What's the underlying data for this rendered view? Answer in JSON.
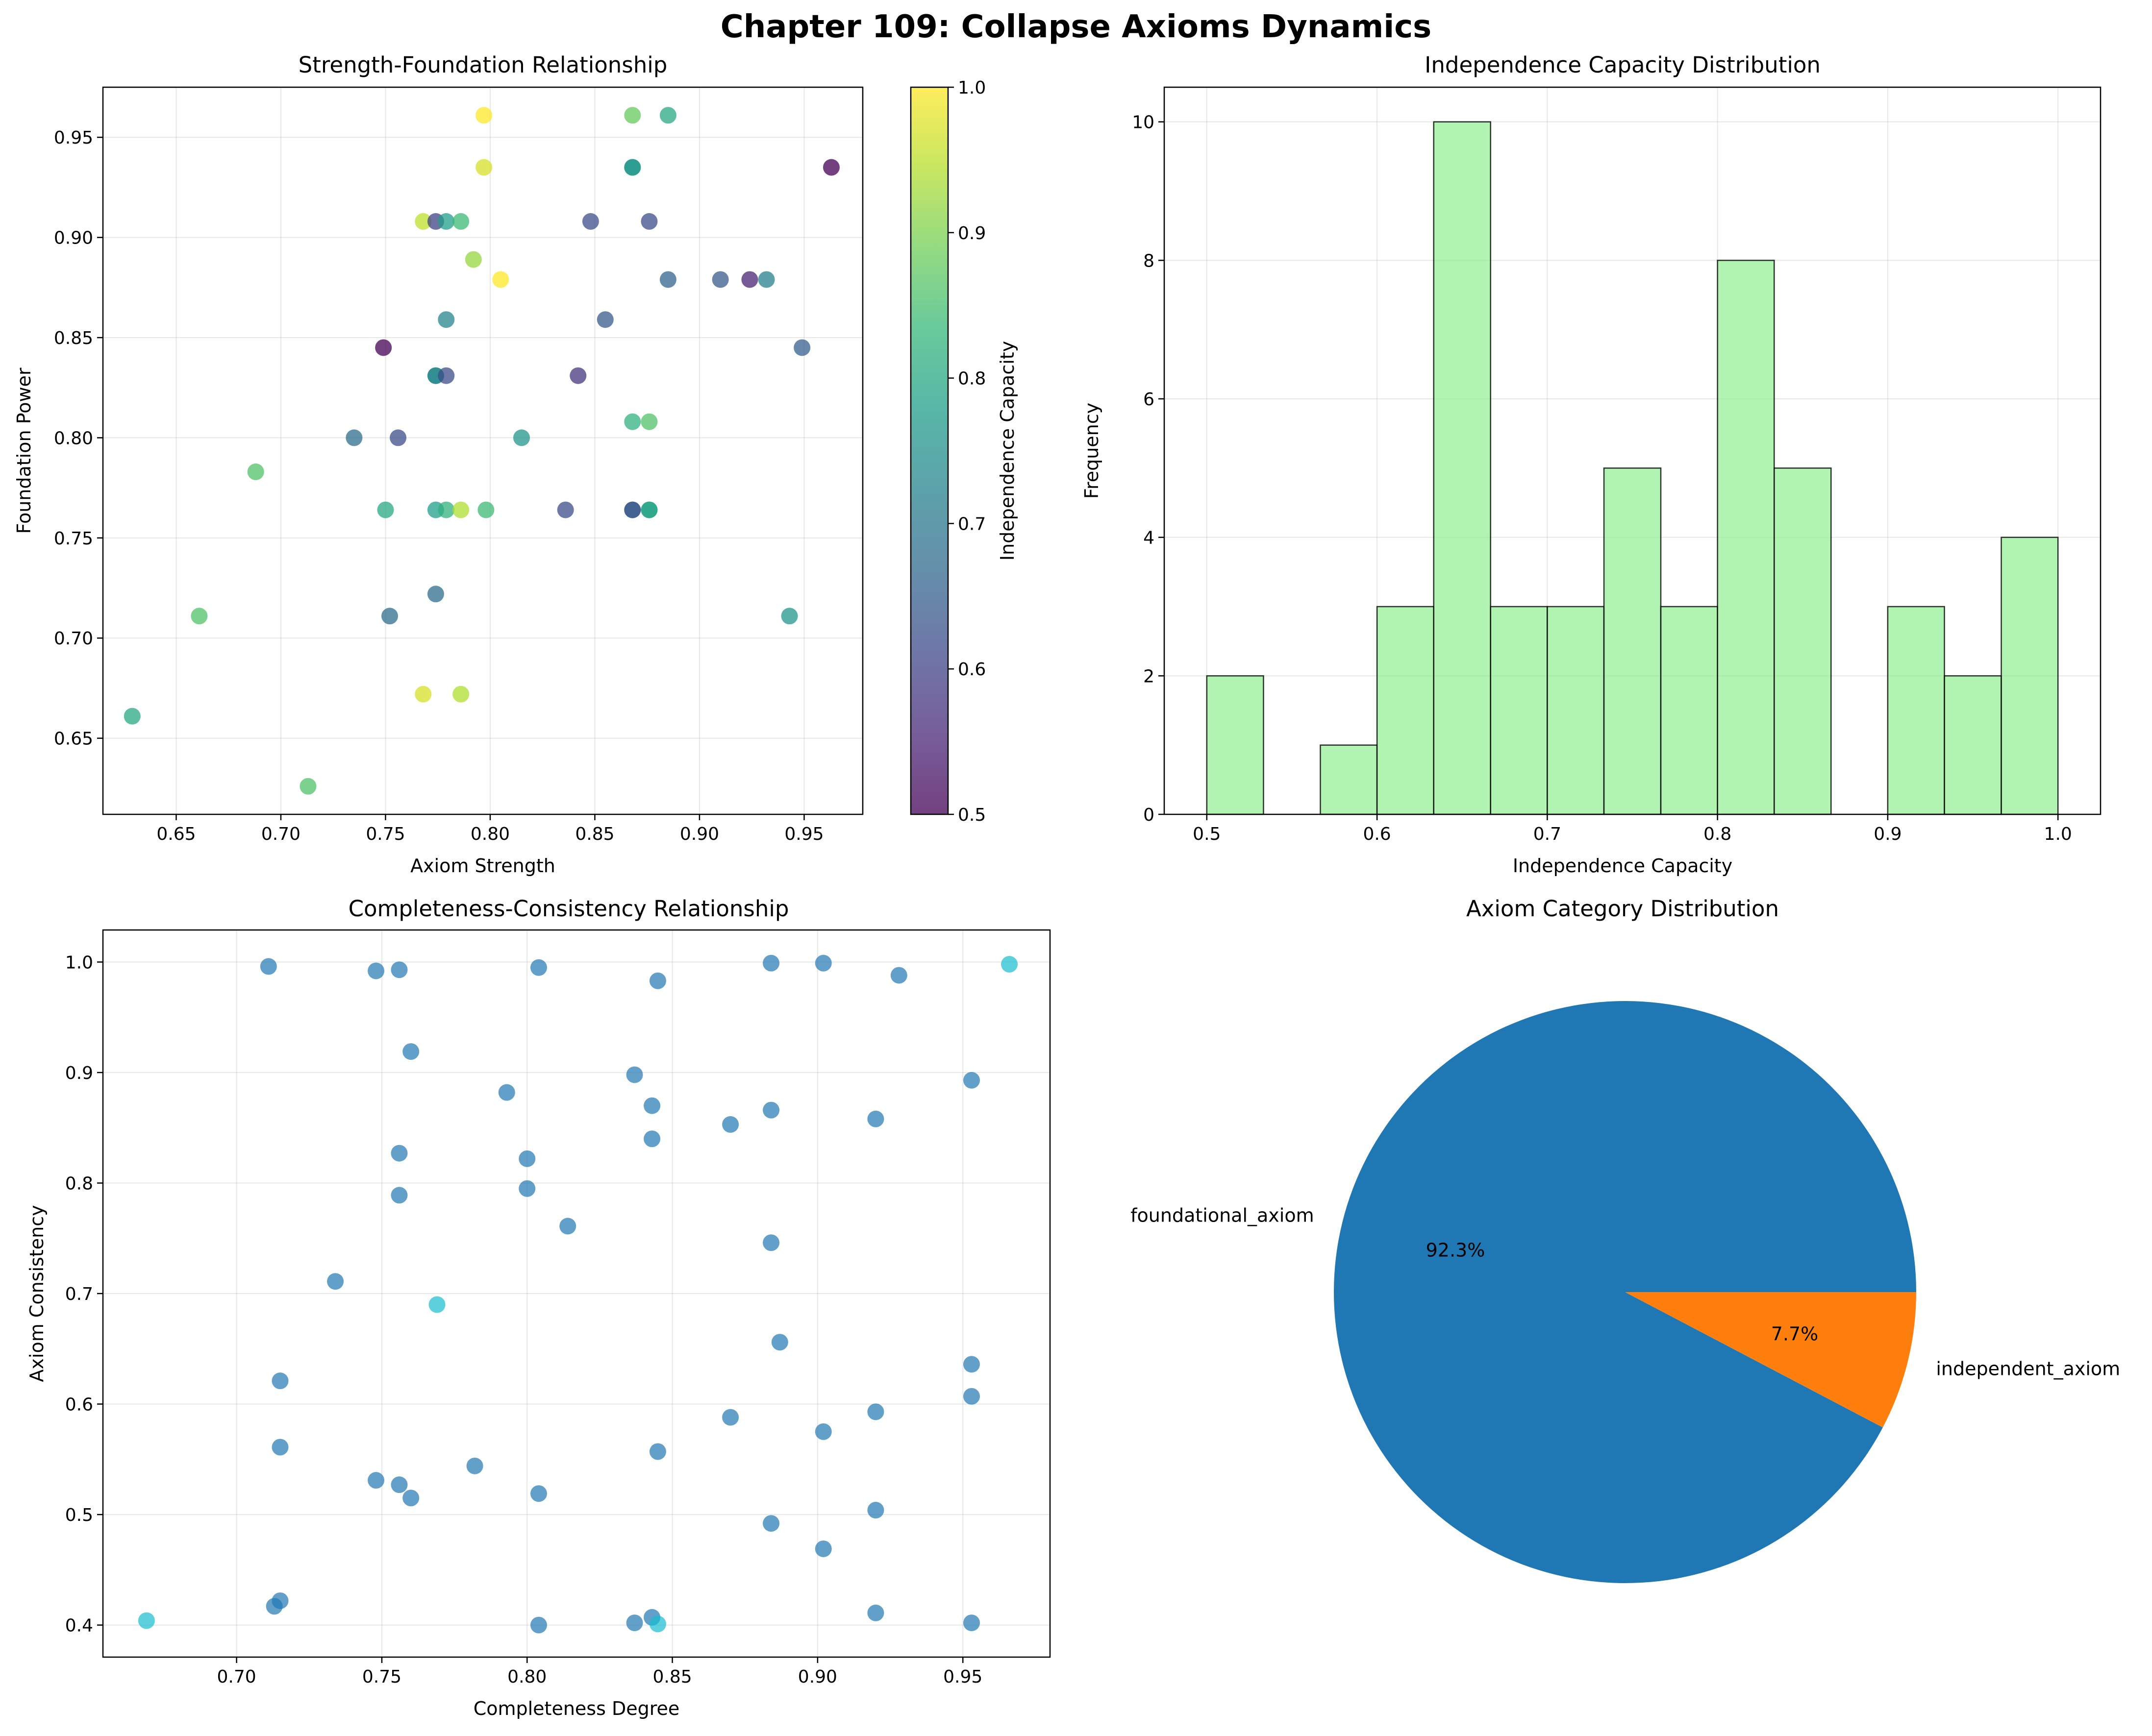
{
  "figure": {
    "title": "Chapter 109: Collapse Axioms Dynamics"
  },
  "colors": {
    "viridis": [
      "#440154",
      "#482878",
      "#3e4989",
      "#31688e",
      "#26828e",
      "#1f9e89",
      "#35b779",
      "#6ece58",
      "#b5de2b",
      "#fde725"
    ],
    "hist_fill": "#90ee90",
    "hist_edge": "#000000",
    "scatter_main": "#1f77b4",
    "scatter_alt": "#17becf",
    "pie": [
      "#1f77b4",
      "#ff7f0e"
    ]
  },
  "chart_data": [
    {
      "type": "scatter",
      "title": "Strength-Foundation Relationship",
      "xlabel": "Axiom Strength",
      "ylabel": "Foundation Power",
      "xlim": [
        0.615,
        0.978
      ],
      "ylim": [
        0.612,
        0.975
      ],
      "xticks": [
        "0.65",
        "0.70",
        "0.75",
        "0.80",
        "0.85",
        "0.90",
        "0.95"
      ],
      "yticks": [
        "0.65",
        "0.70",
        "0.75",
        "0.80",
        "0.85",
        "0.90",
        "0.95"
      ],
      "grid": true,
      "colorbar": {
        "label": "Independence Capacity",
        "range": [
          0.5,
          1.0
        ],
        "ticks": [
          "0.5",
          "0.6",
          "0.7",
          "0.8",
          "0.9",
          "1.0"
        ]
      },
      "points": [
        {
          "x": 0.797,
          "y": 0.961,
          "c": 1.0
        },
        {
          "x": 0.868,
          "y": 0.961,
          "c": 0.88
        },
        {
          "x": 0.885,
          "y": 0.961,
          "c": 0.8
        },
        {
          "x": 0.797,
          "y": 0.935,
          "c": 0.97
        },
        {
          "x": 0.868,
          "y": 0.935,
          "c": 0.78
        },
        {
          "x": 0.868,
          "y": 0.935,
          "c": 0.76
        },
        {
          "x": 0.963,
          "y": 0.935,
          "c": 0.5
        },
        {
          "x": 0.768,
          "y": 0.908,
          "c": 0.95
        },
        {
          "x": 0.774,
          "y": 0.908,
          "c": 0.6
        },
        {
          "x": 0.779,
          "y": 0.908,
          "c": 0.78
        },
        {
          "x": 0.786,
          "y": 0.908,
          "c": 0.84
        },
        {
          "x": 0.848,
          "y": 0.908,
          "c": 0.62
        },
        {
          "x": 0.876,
          "y": 0.908,
          "c": 0.62
        },
        {
          "x": 0.792,
          "y": 0.889,
          "c": 0.92
        },
        {
          "x": 0.805,
          "y": 0.879,
          "c": 1.0
        },
        {
          "x": 0.885,
          "y": 0.879,
          "c": 0.66
        },
        {
          "x": 0.91,
          "y": 0.879,
          "c": 0.64
        },
        {
          "x": 0.924,
          "y": 0.879,
          "c": 0.55
        },
        {
          "x": 0.932,
          "y": 0.879,
          "c": 0.72
        },
        {
          "x": 0.749,
          "y": 0.845,
          "c": 0.5
        },
        {
          "x": 0.949,
          "y": 0.845,
          "c": 0.65
        },
        {
          "x": 0.779,
          "y": 0.859,
          "c": 0.73
        },
        {
          "x": 0.855,
          "y": 0.859,
          "c": 0.64
        },
        {
          "x": 0.774,
          "y": 0.831,
          "c": 0.76
        },
        {
          "x": 0.774,
          "y": 0.831,
          "c": 0.73
        },
        {
          "x": 0.779,
          "y": 0.831,
          "c": 0.62
        },
        {
          "x": 0.842,
          "y": 0.831,
          "c": 0.58
        },
        {
          "x": 0.735,
          "y": 0.8,
          "c": 0.68
        },
        {
          "x": 0.756,
          "y": 0.8,
          "c": 0.62
        },
        {
          "x": 0.815,
          "y": 0.8,
          "c": 0.76
        },
        {
          "x": 0.868,
          "y": 0.808,
          "c": 0.82
        },
        {
          "x": 0.876,
          "y": 0.808,
          "c": 0.86
        },
        {
          "x": 0.688,
          "y": 0.783,
          "c": 0.86
        },
        {
          "x": 0.75,
          "y": 0.764,
          "c": 0.8
        },
        {
          "x": 0.774,
          "y": 0.764,
          "c": 0.78
        },
        {
          "x": 0.779,
          "y": 0.764,
          "c": 0.82
        },
        {
          "x": 0.786,
          "y": 0.764,
          "c": 0.94
        },
        {
          "x": 0.798,
          "y": 0.764,
          "c": 0.84
        },
        {
          "x": 0.836,
          "y": 0.764,
          "c": 0.62
        },
        {
          "x": 0.868,
          "y": 0.764,
          "c": 0.6
        },
        {
          "x": 0.868,
          "y": 0.764,
          "c": 0.65
        },
        {
          "x": 0.876,
          "y": 0.764,
          "c": 0.82
        },
        {
          "x": 0.876,
          "y": 0.764,
          "c": 0.78
        },
        {
          "x": 0.774,
          "y": 0.722,
          "c": 0.68
        },
        {
          "x": 0.661,
          "y": 0.711,
          "c": 0.86
        },
        {
          "x": 0.752,
          "y": 0.711,
          "c": 0.68
        },
        {
          "x": 0.943,
          "y": 0.711,
          "c": 0.76
        },
        {
          "x": 0.768,
          "y": 0.672,
          "c": 0.97
        },
        {
          "x": 0.786,
          "y": 0.672,
          "c": 0.94
        },
        {
          "x": 0.629,
          "y": 0.661,
          "c": 0.8
        },
        {
          "x": 0.713,
          "y": 0.626,
          "c": 0.86
        }
      ]
    },
    {
      "type": "bar",
      "title": "Independence Capacity Distribution",
      "xlabel": "Independence Capacity",
      "ylabel": "Frequency",
      "xlim": [
        0.475,
        1.025
      ],
      "ylim": [
        0,
        10.5
      ],
      "xticks": [
        "0.5",
        "0.6",
        "0.7",
        "0.8",
        "0.9",
        "1.0"
      ],
      "yticks": [
        "0",
        "2",
        "4",
        "6",
        "8",
        "10"
      ],
      "grid": true,
      "bin_edges": [
        0.5,
        0.5333,
        0.5667,
        0.6,
        0.6333,
        0.6667,
        0.7,
        0.7333,
        0.7667,
        0.8,
        0.8333,
        0.8667,
        0.9,
        0.9333,
        0.9667,
        1.0
      ],
      "counts": [
        2,
        0,
        1,
        3,
        10,
        3,
        3,
        5,
        3,
        8,
        5,
        0,
        3,
        2,
        4
      ]
    },
    {
      "type": "scatter",
      "title": "Completeness-Consistency Relationship",
      "xlabel": "Completeness Degree",
      "ylabel": "Axiom Consistency",
      "xlim": [
        0.654,
        0.98
      ],
      "ylim": [
        0.371,
        1.029
      ],
      "xticks": [
        "0.70",
        "0.75",
        "0.80",
        "0.85",
        "0.90",
        "0.95"
      ],
      "yticks": [
        "0.4",
        "0.5",
        "0.6",
        "0.7",
        "0.8",
        "0.9",
        "1.0"
      ],
      "grid": true,
      "points": [
        {
          "x": 0.711,
          "y": 0.996,
          "g": 0
        },
        {
          "x": 0.748,
          "y": 0.992,
          "g": 0
        },
        {
          "x": 0.756,
          "y": 0.993,
          "g": 0
        },
        {
          "x": 0.804,
          "y": 0.995,
          "g": 0
        },
        {
          "x": 0.845,
          "y": 0.983,
          "g": 0
        },
        {
          "x": 0.884,
          "y": 0.999,
          "g": 0
        },
        {
          "x": 0.902,
          "y": 0.999,
          "g": 0
        },
        {
          "x": 0.928,
          "y": 0.988,
          "g": 0
        },
        {
          "x": 0.966,
          "y": 0.998,
          "g": 1
        },
        {
          "x": 0.76,
          "y": 0.919,
          "g": 0
        },
        {
          "x": 0.837,
          "y": 0.898,
          "g": 0
        },
        {
          "x": 0.953,
          "y": 0.893,
          "g": 0
        },
        {
          "x": 0.793,
          "y": 0.882,
          "g": 0
        },
        {
          "x": 0.843,
          "y": 0.87,
          "g": 0
        },
        {
          "x": 0.884,
          "y": 0.866,
          "g": 0
        },
        {
          "x": 0.87,
          "y": 0.853,
          "g": 0
        },
        {
          "x": 0.92,
          "y": 0.858,
          "g": 0
        },
        {
          "x": 0.843,
          "y": 0.84,
          "g": 0
        },
        {
          "x": 0.756,
          "y": 0.827,
          "g": 0
        },
        {
          "x": 0.8,
          "y": 0.822,
          "g": 0
        },
        {
          "x": 0.8,
          "y": 0.795,
          "g": 0
        },
        {
          "x": 0.756,
          "y": 0.789,
          "g": 0
        },
        {
          "x": 0.814,
          "y": 0.761,
          "g": 0
        },
        {
          "x": 0.884,
          "y": 0.746,
          "g": 0
        },
        {
          "x": 0.734,
          "y": 0.711,
          "g": 0
        },
        {
          "x": 0.769,
          "y": 0.69,
          "g": 1
        },
        {
          "x": 0.887,
          "y": 0.656,
          "g": 0
        },
        {
          "x": 0.953,
          "y": 0.636,
          "g": 0
        },
        {
          "x": 0.715,
          "y": 0.621,
          "g": 0
        },
        {
          "x": 0.953,
          "y": 0.607,
          "g": 0
        },
        {
          "x": 0.92,
          "y": 0.593,
          "g": 0
        },
        {
          "x": 0.87,
          "y": 0.588,
          "g": 0
        },
        {
          "x": 0.902,
          "y": 0.575,
          "g": 0
        },
        {
          "x": 0.715,
          "y": 0.561,
          "g": 0
        },
        {
          "x": 0.845,
          "y": 0.557,
          "g": 0
        },
        {
          "x": 0.782,
          "y": 0.544,
          "g": 0
        },
        {
          "x": 0.748,
          "y": 0.531,
          "g": 0
        },
        {
          "x": 0.756,
          "y": 0.527,
          "g": 0
        },
        {
          "x": 0.804,
          "y": 0.519,
          "g": 0
        },
        {
          "x": 0.76,
          "y": 0.515,
          "g": 0
        },
        {
          "x": 0.92,
          "y": 0.504,
          "g": 0
        },
        {
          "x": 0.884,
          "y": 0.492,
          "g": 0
        },
        {
          "x": 0.902,
          "y": 0.469,
          "g": 0
        },
        {
          "x": 0.715,
          "y": 0.422,
          "g": 0
        },
        {
          "x": 0.713,
          "y": 0.417,
          "g": 0
        },
        {
          "x": 0.92,
          "y": 0.411,
          "g": 0
        },
        {
          "x": 0.843,
          "y": 0.407,
          "g": 0
        },
        {
          "x": 0.669,
          "y": 0.404,
          "g": 1
        },
        {
          "x": 0.837,
          "y": 0.402,
          "g": 0
        },
        {
          "x": 0.845,
          "y": 0.401,
          "g": 1
        },
        {
          "x": 0.804,
          "y": 0.4,
          "g": 0
        },
        {
          "x": 0.953,
          "y": 0.402,
          "g": 0
        }
      ]
    },
    {
      "type": "pie",
      "title": "Axiom Category Distribution",
      "slices": [
        {
          "label": "foundational_axiom",
          "value": 92.3,
          "pct": "92.3%"
        },
        {
          "label": "independent_axiom",
          "value": 7.7,
          "pct": "7.7%"
        }
      ]
    }
  ]
}
